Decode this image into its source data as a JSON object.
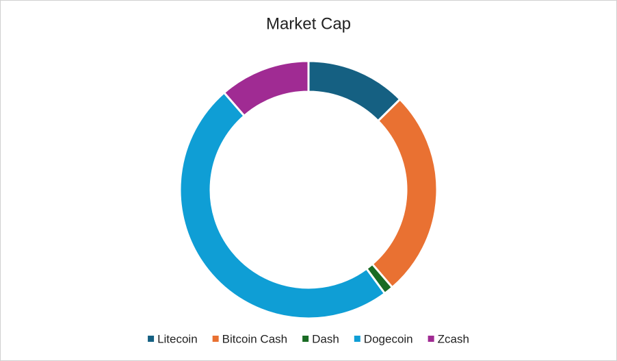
{
  "chart_data": {
    "type": "doughnut",
    "title": "Market Cap",
    "categories": [
      "Litecoin",
      "Bitcoin Cash",
      "Dash",
      "Dogecoin",
      "Zcash"
    ],
    "values": [
      12.6,
      26.1,
      1.2,
      48.7,
      11.4
    ],
    "colors": [
      "#156082",
      "#e97132",
      "#196b24",
      "#0f9ed5",
      "#a02b93"
    ],
    "legend": "bottom"
  }
}
